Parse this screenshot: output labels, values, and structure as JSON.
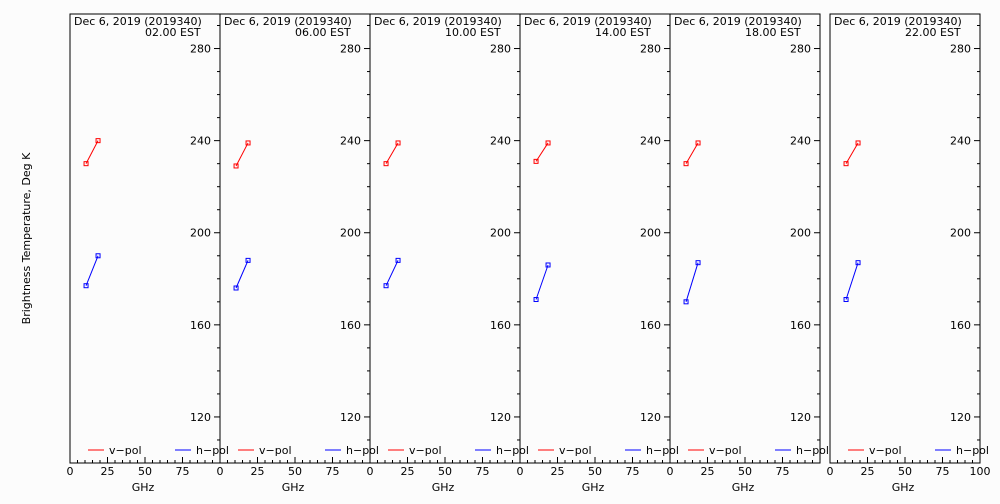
{
  "chart_data": {
    "type": "line",
    "ylabel": "Brightness Temperature, Deg K",
    "xlabel": "GHz",
    "xlim": [
      0,
      100
    ],
    "ylim": [
      100,
      295
    ],
    "x_ticks": [
      0,
      25,
      50,
      75,
      100
    ],
    "y_ticks": [
      120,
      160,
      200,
      240,
      280
    ],
    "legend_placement": "bottom",
    "legend": [
      {
        "name": "v-pol",
        "label": "v−pol",
        "color": "#ff0000"
      },
      {
        "name": "h-pol",
        "label": "h−pol",
        "color": "#0000ff"
      }
    ],
    "panels": [
      {
        "date_line": "Dec  6, 2019 (2019340)",
        "time_line": "02.00 EST",
        "series": [
          {
            "name": "v-pol",
            "color": "#ff0000",
            "x": [
              10.7,
              18.7
            ],
            "y": [
              230,
              240
            ]
          },
          {
            "name": "h-pol",
            "color": "#0000ff",
            "x": [
              10.7,
              18.7
            ],
            "y": [
              177,
              190
            ]
          }
        ]
      },
      {
        "date_line": "Dec  6, 2019 (2019340)",
        "time_line": "06.00 EST",
        "series": [
          {
            "name": "v-pol",
            "color": "#ff0000",
            "x": [
              10.7,
              18.7
            ],
            "y": [
              229,
              239
            ]
          },
          {
            "name": "h-pol",
            "color": "#0000ff",
            "x": [
              10.7,
              18.7
            ],
            "y": [
              176,
              188
            ]
          }
        ]
      },
      {
        "date_line": "Dec  6, 2019 (2019340)",
        "time_line": "10.00 EST",
        "series": [
          {
            "name": "v-pol",
            "color": "#ff0000",
            "x": [
              10.7,
              18.7
            ],
            "y": [
              230,
              239
            ]
          },
          {
            "name": "h-pol",
            "color": "#0000ff",
            "x": [
              10.7,
              18.7
            ],
            "y": [
              177,
              188
            ]
          }
        ]
      },
      {
        "date_line": "Dec  6, 2019 (2019340)",
        "time_line": "14.00 EST",
        "series": [
          {
            "name": "v-pol",
            "color": "#ff0000",
            "x": [
              10.7,
              18.7
            ],
            "y": [
              231,
              239
            ]
          },
          {
            "name": "h-pol",
            "color": "#0000ff",
            "x": [
              10.7,
              18.7
            ],
            "y": [
              171,
              186
            ]
          }
        ]
      },
      {
        "date_line": "Dec  6, 2019 (2019340)",
        "time_line": "18.00 EST",
        "series": [
          {
            "name": "v-pol",
            "color": "#ff0000",
            "x": [
              10.7,
              18.7
            ],
            "y": [
              230,
              239
            ]
          },
          {
            "name": "h-pol",
            "color": "#0000ff",
            "x": [
              10.7,
              18.7
            ],
            "y": [
              170,
              187
            ]
          }
        ]
      },
      {
        "date_line": "Dec  6, 2019 (2019340)",
        "time_line": "22.00 EST",
        "series": [
          {
            "name": "v-pol",
            "color": "#ff0000",
            "x": [
              10.7,
              18.7
            ],
            "y": [
              230,
              239
            ]
          },
          {
            "name": "h-pol",
            "color": "#0000ff",
            "x": [
              10.7,
              18.7
            ],
            "y": [
              171,
              187
            ]
          }
        ]
      }
    ]
  }
}
